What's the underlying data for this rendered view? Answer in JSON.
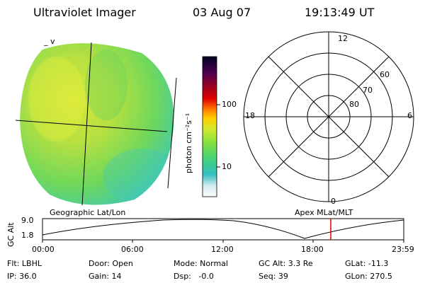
{
  "header": {
    "title": "Ultraviolet Imager",
    "date": "03 Aug 07",
    "time": "19:13:49 UT"
  },
  "globe": {
    "corner_mark": "_ v"
  },
  "colorbar": {
    "unit_label": "photon cm⁻²s⁻¹",
    "ticks": [
      "100",
      "10"
    ]
  },
  "polar_plot": {
    "mlt_labels": [
      "12",
      "18",
      "6",
      "0"
    ],
    "lat_labels": [
      "60",
      "70",
      "80"
    ]
  },
  "altitude_strip": {
    "left_title": "Geographic Lat/Lon",
    "right_title": "Apex MLat/MLT",
    "ylabel": "GC Alt",
    "y_ticks": [
      "9.0",
      "1.8"
    ],
    "x_ticks": [
      "00:00",
      "06:00",
      "12:00",
      "18:00",
      "23:59"
    ],
    "marker_color": "#e00000"
  },
  "footer": {
    "row1": [
      "Flt: LBHL",
      "Door: Open",
      "Mode: Normal",
      "GC Alt: 3.3 Re",
      "GLat: -11.3"
    ],
    "row2": [
      "IP: 36.0",
      "Gain: 14",
      "Dsp:   -0.0",
      "Seq: 39",
      "GLon: 270.5"
    ]
  }
}
